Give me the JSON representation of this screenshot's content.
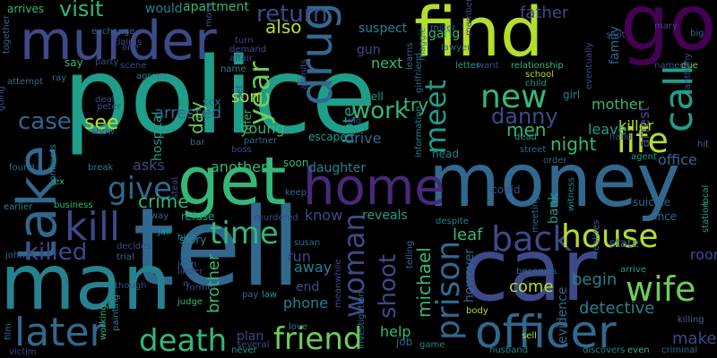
{
  "background": "#000000",
  "palette": [
    "#440154",
    "#482878",
    "#3e4989",
    "#31688e",
    "#26828e",
    "#1f9e89",
    "#35b779",
    "#6ece58",
    "#b5de2b",
    "#fde725"
  ],
  "words": [
    {
      "text": "police",
      "color": "#1f9e89"
    },
    {
      "text": "tell",
      "color": "#31688e"
    },
    {
      "text": "money",
      "color": "#31688e"
    },
    {
      "text": "car",
      "color": "#3e4989"
    },
    {
      "text": "man",
      "color": "#26828e"
    },
    {
      "text": "get",
      "color": "#35b779"
    },
    {
      "text": "find",
      "color": "#b5de2b"
    },
    {
      "text": "go",
      "color": "#440154"
    },
    {
      "text": "take",
      "color": "#31688e"
    },
    {
      "text": "murder",
      "color": "#3e4989"
    },
    {
      "text": "drug",
      "color": "#31688e"
    },
    {
      "text": "home",
      "color": "#482878"
    },
    {
      "text": "officer",
      "color": "#31688e"
    },
    {
      "text": "kill",
      "color": "#3e4989"
    },
    {
      "text": "later",
      "color": "#31688e"
    },
    {
      "text": "death",
      "color": "#35b779"
    },
    {
      "text": "friend",
      "color": "#6ece58"
    },
    {
      "text": "back",
      "color": "#3e4989"
    },
    {
      "text": "house",
      "color": "#b5de2b"
    },
    {
      "text": "wife",
      "color": "#6ece58"
    },
    {
      "text": "life",
      "color": "#b5de2b"
    },
    {
      "text": "call",
      "color": "#1f9e89"
    },
    {
      "text": "new",
      "color": "#35b779"
    },
    {
      "text": "meet",
      "color": "#1f9e89"
    },
    {
      "text": "woman",
      "color": "#3e4989"
    },
    {
      "text": "prison",
      "color": "#31688e"
    },
    {
      "text": "time",
      "color": "#35b779"
    },
    {
      "text": "give",
      "color": "#31688e"
    },
    {
      "text": "killed",
      "color": "#3e4989"
    },
    {
      "text": "year",
      "color": "#6ece58"
    },
    {
      "text": "danny",
      "color": "#3e4989"
    },
    {
      "text": "case",
      "color": "#31688e"
    },
    {
      "text": "visit",
      "color": "#35b779"
    },
    {
      "text": "work",
      "color": "#35b779"
    },
    {
      "text": "return",
      "color": "#3e4989"
    },
    {
      "text": "also",
      "color": "#b5de2b"
    },
    {
      "text": "see",
      "color": "#b5de2b"
    },
    {
      "text": "crime",
      "color": "#35b779"
    },
    {
      "text": "night",
      "color": "#35b779"
    },
    {
      "text": "shoot",
      "color": "#3e4989"
    },
    {
      "text": "men",
      "color": "#35b779"
    },
    {
      "text": "arrested",
      "color": "#31688e"
    },
    {
      "text": "son",
      "color": "#b5de2b"
    },
    {
      "text": "day",
      "color": "#6ece58"
    },
    {
      "text": "try",
      "color": "#35b779"
    },
    {
      "text": "hotel",
      "color": "#1f9e89"
    },
    {
      "text": "asks",
      "color": "#3e4989"
    },
    {
      "text": "michael",
      "color": "#35b779"
    },
    {
      "text": "leaf",
      "color": "#35b779"
    },
    {
      "text": "detective",
      "color": "#26828e"
    },
    {
      "text": "make",
      "color": "#3e4989"
    },
    {
      "text": "brother",
      "color": "#35b779"
    },
    {
      "text": "phone",
      "color": "#26828e"
    },
    {
      "text": "away",
      "color": "#26828e"
    },
    {
      "text": "run",
      "color": "#3e4989"
    },
    {
      "text": "help",
      "color": "#35b779"
    },
    {
      "text": "come",
      "color": "#b5de2b"
    },
    {
      "text": "begin",
      "color": "#26828e"
    },
    {
      "text": "father",
      "color": "#3e4989"
    },
    {
      "text": "mother",
      "color": "#35b779"
    },
    {
      "text": "killer",
      "color": "#b5de2b"
    },
    {
      "text": "leave",
      "color": "#1f9e89"
    },
    {
      "text": "arrest",
      "color": "#3e4989"
    },
    {
      "text": "office",
      "color": "#31688e"
    },
    {
      "text": "daughter",
      "color": "#26828e"
    },
    {
      "text": "another",
      "color": "#35b779"
    },
    {
      "text": "drive",
      "color": "#31688e"
    },
    {
      "text": "young",
      "color": "#35b779"
    },
    {
      "text": "hospital",
      "color": "#1f9e89"
    },
    {
      "text": "know",
      "color": "#3e4989"
    },
    {
      "text": "reveals",
      "color": "#1f9e89"
    },
    {
      "text": "next",
      "color": "#35b779"
    },
    {
      "text": "gun",
      "color": "#3e4989"
    },
    {
      "text": "suspect",
      "color": "#26828e"
    },
    {
      "text": "apartment",
      "color": "#35b779"
    },
    {
      "text": "would",
      "color": "#26828e"
    },
    {
      "text": "gang",
      "color": "#35b779"
    },
    {
      "text": "family",
      "color": "#31688e"
    },
    {
      "text": "state",
      "color": "#31688e"
    },
    {
      "text": "bank",
      "color": "#1f9e89"
    },
    {
      "text": "end",
      "color": "#3e4989"
    },
    {
      "text": "plan",
      "color": "#3e4989"
    },
    {
      "text": "room",
      "color": "#3e4989"
    },
    {
      "text": "evidence",
      "color": "#31688e"
    },
    {
      "text": "however",
      "color": "#31688e"
    },
    {
      "text": "arrives",
      "color": "#35b779"
    },
    {
      "text": "say",
      "color": "#35b779"
    },
    {
      "text": "well",
      "color": "#1f9e89"
    },
    {
      "text": "girl",
      "color": "#26828e"
    },
    {
      "text": "story",
      "color": "#26828e"
    },
    {
      "text": "keep",
      "color": "#31688e"
    },
    {
      "text": "escape",
      "color": "#1f9e89"
    },
    {
      "text": "partner",
      "color": "#31688e"
    },
    {
      "text": "refuse",
      "color": "#1f9e89"
    },
    {
      "text": "sex",
      "color": "#31688e"
    },
    {
      "text": "offer",
      "color": "#35b779"
    },
    {
      "text": "head",
      "color": "#26828e"
    },
    {
      "text": "soon",
      "color": "#35b779"
    },
    {
      "text": "could",
      "color": "#3e4989"
    },
    {
      "text": "since",
      "color": "#31688e"
    },
    {
      "text": "suicide",
      "color": "#31688e"
    },
    {
      "text": "want",
      "color": "#3e4989"
    },
    {
      "text": "relationship",
      "color": "#35b779"
    },
    {
      "text": "school",
      "color": "#b5de2b"
    },
    {
      "text": "child",
      "color": "#1f9e89"
    },
    {
      "text": "dead",
      "color": "#1f9e89"
    },
    {
      "text": "order",
      "color": "#31688e"
    },
    {
      "text": "hand",
      "color": "#3e4989"
    },
    {
      "text": "agent",
      "color": "#1f9e89"
    },
    {
      "text": "named",
      "color": "#3e4989"
    },
    {
      "text": "due",
      "color": "#6ece58"
    },
    {
      "text": "local",
      "color": "#1f9e89"
    },
    {
      "text": "station",
      "color": "#1f9e89"
    },
    {
      "text": "anthony",
      "color": "#3e4989"
    },
    {
      "text": "hit",
      "color": "#31688e"
    },
    {
      "text": "arrive",
      "color": "#1f9e89"
    },
    {
      "text": "criminal",
      "color": "#31688e"
    },
    {
      "text": "killing",
      "color": "#31688e"
    },
    {
      "text": "even",
      "color": "#35b779"
    },
    {
      "text": "discovers",
      "color": "#26828e"
    },
    {
      "text": "sell",
      "color": "#b5de2b"
    },
    {
      "text": "husband",
      "color": "#26828e"
    },
    {
      "text": "body",
      "color": "#b5de2b"
    },
    {
      "text": "becomes",
      "color": "#31688e"
    },
    {
      "text": "witness",
      "color": "#26828e"
    },
    {
      "text": "meeting",
      "color": "#31688e"
    },
    {
      "text": "realizes",
      "color": "#31688e"
    },
    {
      "text": "despite",
      "color": "#26828e"
    },
    {
      "text": "lawyer",
      "color": "#31688e"
    },
    {
      "text": "letter",
      "color": "#1f9e89"
    },
    {
      "text": "member",
      "color": "#3e4989"
    },
    {
      "text": "eventually",
      "color": "#3e4989"
    },
    {
      "text": "shot",
      "color": "#3e4989"
    },
    {
      "text": "maggie",
      "color": "#26828e"
    },
    {
      "text": "learns",
      "color": "#31688e"
    },
    {
      "text": "girlfriend",
      "color": "#31688e"
    },
    {
      "text": "street",
      "color": "#31688e"
    },
    {
      "text": "information",
      "color": "#26828e"
    },
    {
      "text": "telling",
      "color": "#31688e"
    },
    {
      "text": "game",
      "color": "#26828e"
    },
    {
      "text": "job",
      "color": "#31688e"
    },
    {
      "text": "investigation",
      "color": "#31688e"
    },
    {
      "text": "meanwhile",
      "color": "#3e4989"
    },
    {
      "text": "susan",
      "color": "#31688e"
    },
    {
      "text": "love",
      "color": "#26828e"
    },
    {
      "text": "never",
      "color": "#1f9e89"
    },
    {
      "text": "several",
      "color": "#3e4989"
    },
    {
      "text": "law",
      "color": "#1f9e89"
    },
    {
      "text": "pay",
      "color": "#31688e"
    },
    {
      "text": "murdered",
      "color": "#3e4989"
    },
    {
      "text": "jean",
      "color": "#31688e"
    },
    {
      "text": "judge",
      "color": "#35b779"
    },
    {
      "text": "former",
      "color": "#3e4989"
    },
    {
      "text": "high",
      "color": "#26828e"
    },
    {
      "text": "jail",
      "color": "#1f9e89"
    },
    {
      "text": "way",
      "color": "#31688e"
    },
    {
      "text": "decides",
      "color": "#3e4989"
    },
    {
      "text": "trial",
      "color": "#31688e"
    },
    {
      "text": "though",
      "color": "#3e4989"
    },
    {
      "text": "painting",
      "color": "#26828e"
    },
    {
      "text": "working",
      "color": "#35b779"
    },
    {
      "text": "film",
      "color": "#31688e"
    },
    {
      "text": "victim",
      "color": "#3e4989"
    },
    {
      "text": "john",
      "color": "#31688e"
    },
    {
      "text": "earlier",
      "color": "#26828e"
    },
    {
      "text": "business",
      "color": "#35b779"
    },
    {
      "text": "confronts",
      "color": "#26828e"
    },
    {
      "text": "found",
      "color": "#31688e"
    },
    {
      "text": "break",
      "color": "#26828e"
    },
    {
      "text": "show",
      "color": "#3e4989"
    },
    {
      "text": "peter",
      "color": "#3e4989"
    },
    {
      "text": "deal",
      "color": "#3e4989"
    },
    {
      "text": "steal",
      "color": "#3e4989"
    },
    {
      "text": "bar",
      "color": "#31688e"
    },
    {
      "text": "boss",
      "color": "#3e4989"
    },
    {
      "text": "admits",
      "color": "#3e4989"
    },
    {
      "text": "old",
      "color": "#3e4989"
    },
    {
      "text": "agrees",
      "color": "#26828e"
    },
    {
      "text": "scene",
      "color": "#3e4989"
    },
    {
      "text": "party",
      "color": "#3e4989"
    },
    {
      "text": "claims",
      "color": "#3e4989"
    },
    {
      "text": "one",
      "color": "#3e4989"
    },
    {
      "text": "name",
      "color": "#26828e"
    },
    {
      "text": "affair",
      "color": "#3e4989"
    },
    {
      "text": "turn",
      "color": "#3e4989"
    },
    {
      "text": "demand",
      "color": "#3e4989"
    },
    {
      "text": "exchange",
      "color": "#31688e"
    },
    {
      "text": "move",
      "color": "#3e4989"
    },
    {
      "text": "together",
      "color": "#31688e"
    },
    {
      "text": "attempt",
      "color": "#31688e"
    },
    {
      "text": "ray",
      "color": "#31688e"
    },
    {
      "text": "going",
      "color": "#3e4989"
    },
    {
      "text": "ex",
      "color": "#35b779"
    },
    {
      "text": "linder",
      "color": "#3e4989"
    },
    {
      "text": "set",
      "color": "#3e4989"
    },
    {
      "text": "n",
      "color": "#3e4989"
    },
    {
      "text": "big",
      "color": "#31688e"
    },
    {
      "text": "miller",
      "color": "#31688e"
    },
    {
      "text": "mary",
      "color": "#3e4989"
    }
  ]
}
